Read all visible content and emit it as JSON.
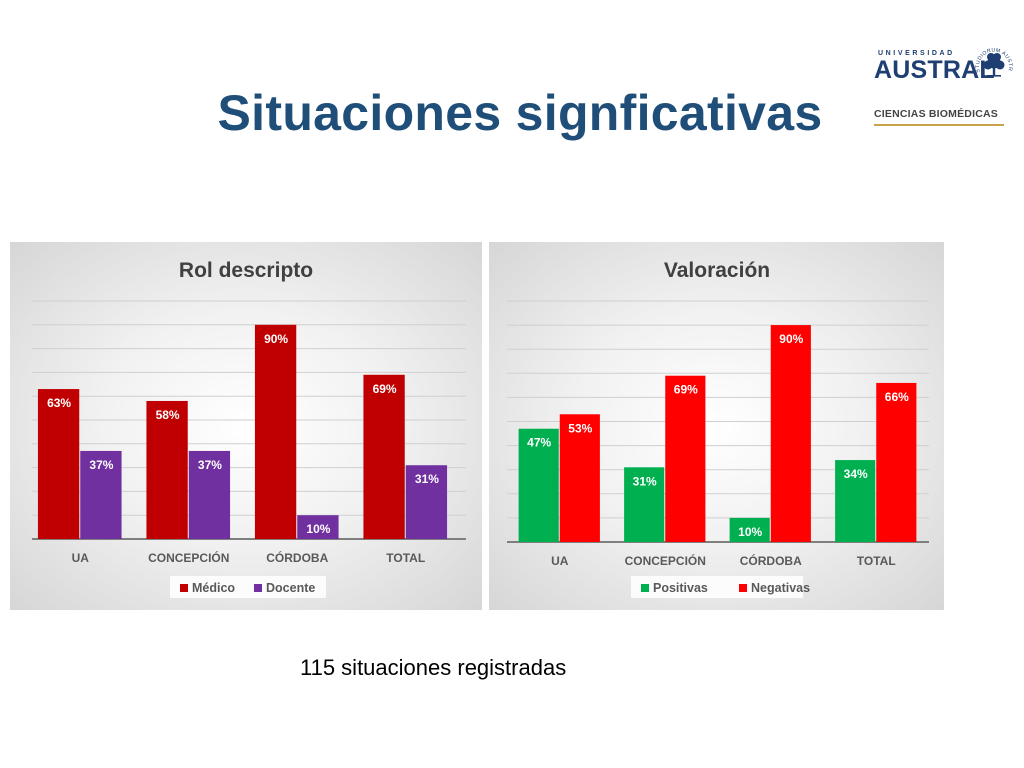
{
  "slide": {
    "title": "Situaciones signficativas",
    "footnote": "115 situaciones registradas"
  },
  "logo": {
    "small_text": "UNIVERSIDAD",
    "name": "AUSTRAL",
    "faculty": "CIENCIAS BIOMÉDICAS",
    "crest_motto": "STUDIORUM AUSTRALIS UNIVERSITATIS",
    "colors": {
      "navy": "#1f3f73",
      "gold": "#c8a24a"
    }
  },
  "chart_data": [
    {
      "type": "bar",
      "title": "Rol descripto",
      "categories": [
        "UA",
        "CONCEPCIÓN",
        "CÓRDOBA",
        "TOTAL"
      ],
      "series": [
        {
          "name": "Médico",
          "values": [
            63,
            58,
            90,
            69
          ],
          "labels": [
            "63%",
            "58%",
            "90%",
            "69%"
          ],
          "color": "#c00000"
        },
        {
          "name": "Docente",
          "values": [
            37,
            37,
            10,
            31
          ],
          "labels": [
            "37%",
            "37%",
            "10%",
            "31%"
          ],
          "color": "#7030a0"
        }
      ],
      "ylim": [
        0,
        100
      ],
      "grid": true,
      "legend": "bottom"
    },
    {
      "type": "bar",
      "title": "Valoración",
      "categories": [
        "UA",
        "CONCEPCIÓN",
        "CÓRDOBA",
        "TOTAL"
      ],
      "series": [
        {
          "name": "Positivas",
          "values": [
            47,
            31,
            10,
            34
          ],
          "labels": [
            "47%",
            "31%",
            "10%",
            "34%"
          ],
          "color": "#00b050"
        },
        {
          "name": "Negativas",
          "values": [
            53,
            69,
            90,
            66
          ],
          "labels": [
            "53%",
            "69%",
            "90%",
            "66%"
          ],
          "color": "#ff0000"
        }
      ],
      "ylim": [
        0,
        100
      ],
      "grid": true,
      "legend": "bottom"
    }
  ]
}
